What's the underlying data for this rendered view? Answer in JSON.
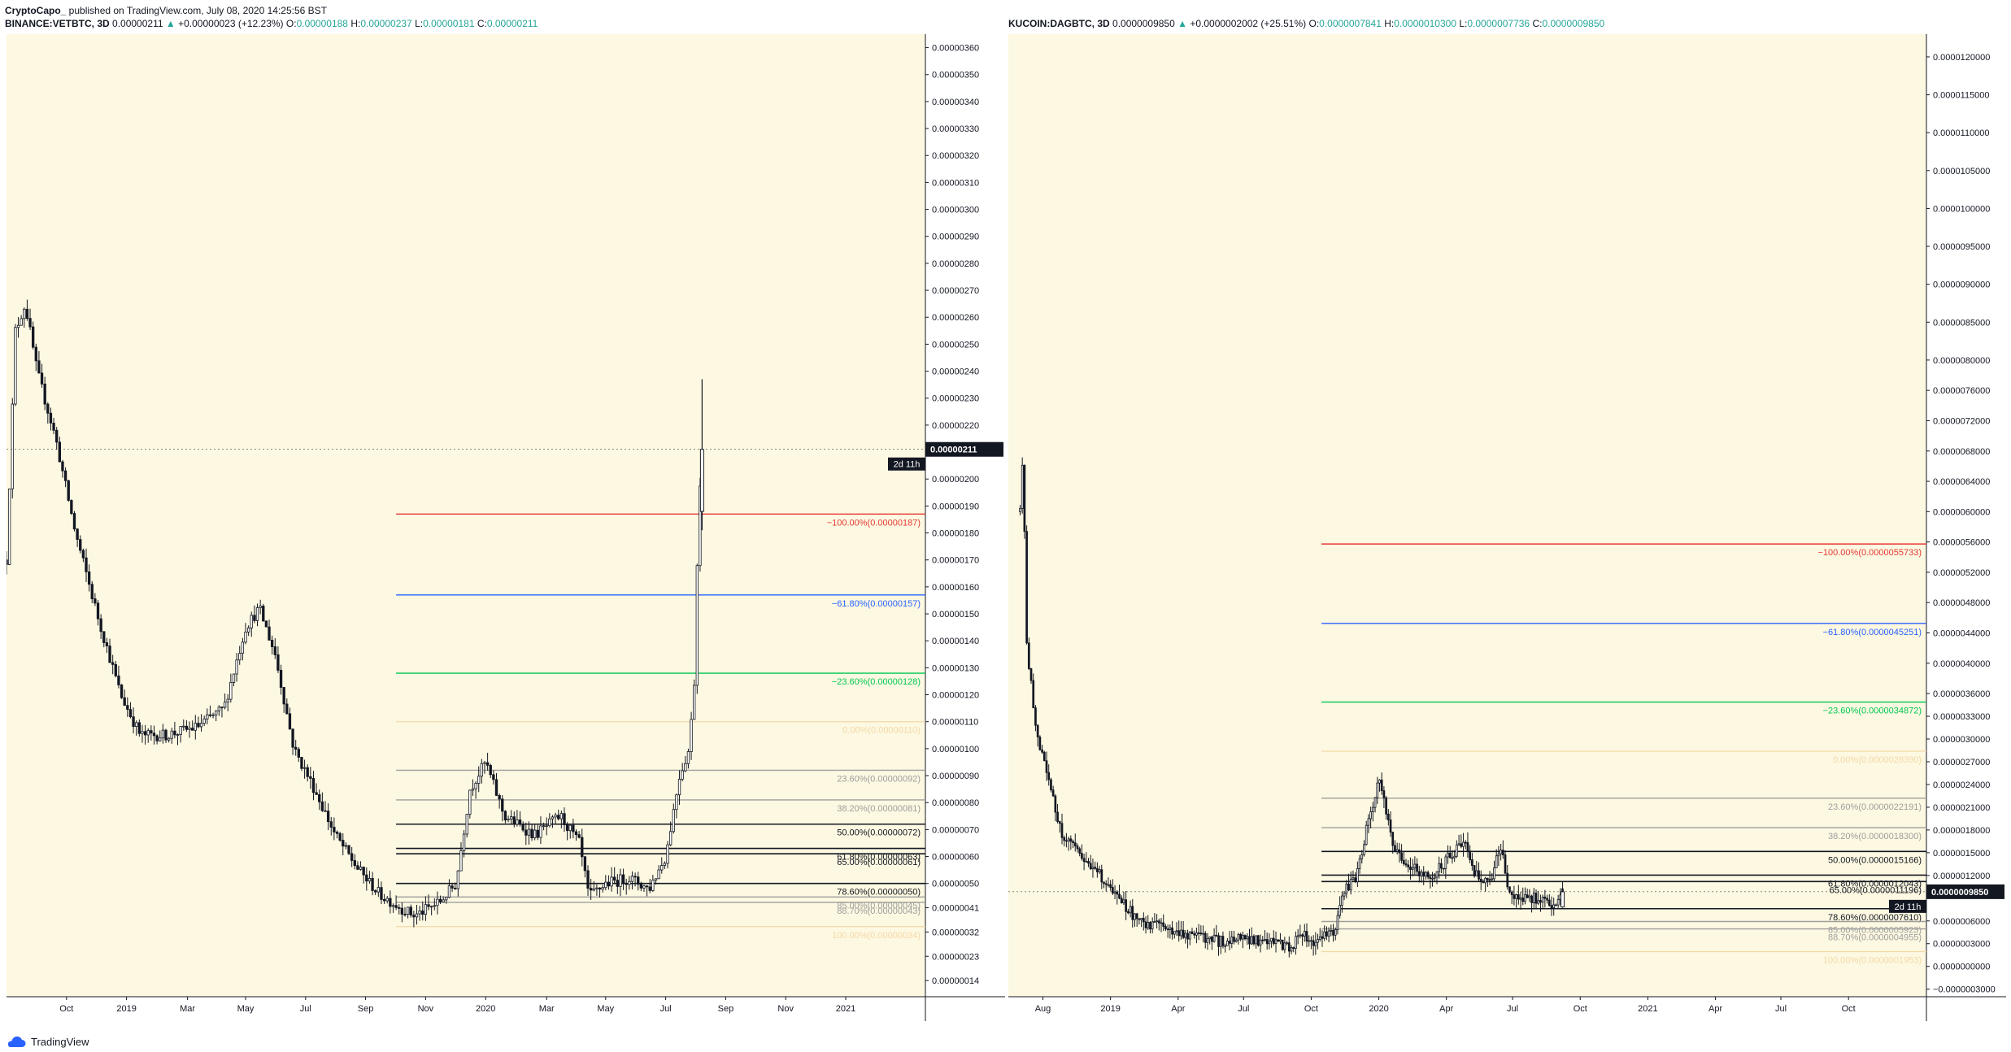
{
  "header": {
    "author": "CryptoCapo_",
    "published": " published on TradingView.com, July 08, 2020 14:25:56 BST"
  },
  "footer": {
    "brand": "TradingView"
  },
  "colors": {
    "background": "#fdf8e1",
    "candle": "#131722",
    "fib_red": "#e53935",
    "fib_blue": "#2962ff",
    "fib_green": "#00c853",
    "fib_gray": "#9e9e9e",
    "fib_black": "#131722",
    "fib_faint": "#f3d9a8",
    "up": "#26a69a"
  },
  "chart_data": [
    {
      "type": "candlestick",
      "symbol_line": {
        "symbol": "BINANCE:VETBTC, 3D",
        "last": "0.00000211",
        "arrow": "▲",
        "change": "+0.00000023 (+12.23%)",
        "o_label": "O:",
        "o": "0.00000188",
        "h_label": "H:",
        "h": "0.00000237",
        "l_label": "L:",
        "l": "0.00000181",
        "c_label": "C:",
        "c": "0.00000211"
      },
      "ylim": [
        8e-08,
        3.65e-06
      ],
      "yticks": [
        "0.00000360",
        "0.00000350",
        "0.00000340",
        "0.00000330",
        "0.00000320",
        "0.00000310",
        "0.00000300",
        "0.00000290",
        "0.00000280",
        "0.00000270",
        "0.00000260",
        "0.00000250",
        "0.00000240",
        "0.00000230",
        "0.00000220",
        "0.00000200",
        "0.00000190",
        "0.00000180",
        "0.00000170",
        "0.00000160",
        "0.00000150",
        "0.00000140",
        "0.00000130",
        "0.00000120",
        "0.00000110",
        "0.00000100",
        "0.00000090",
        "0.00000080",
        "0.00000070",
        "0.00000060",
        "0.00000050",
        "0.00000041",
        "0.00000032",
        "0.00000023",
        "0.00000014"
      ],
      "x_labels": [
        "Oct",
        "2019",
        "Mar",
        "May",
        "Jul",
        "Sep",
        "Nov",
        "2020",
        "Mar",
        "May",
        "Jul",
        "Sep",
        "Nov",
        "2021"
      ],
      "x_axis_start": "2018-08-01",
      "x_axis_end": "2021-02-20",
      "price_badge": "0.00000211",
      "countdown_badge": "2d 11h",
      "fib_start": "2019-09-01",
      "fib_levels": [
        {
          "label": "−100.00%(0.00000187)",
          "value": 1.87e-06,
          "color": "red"
        },
        {
          "label": "−61.80%(0.00000157)",
          "value": 1.57e-06,
          "color": "blue"
        },
        {
          "label": "−23.60%(0.00000128)",
          "value": 1.28e-06,
          "color": "green"
        },
        {
          "label": "0.00%(0.00000110)",
          "value": 1.1e-06,
          "color": "faint"
        },
        {
          "label": "23.60%(0.00000092)",
          "value": 9.2e-07,
          "color": "gray"
        },
        {
          "label": "38.20%(0.00000081)",
          "value": 8.1e-07,
          "color": "gray"
        },
        {
          "label": "50.00%(0.00000072)",
          "value": 7.2e-07,
          "color": "black"
        },
        {
          "label": "61.80%(0.00000063)",
          "value": 6.3e-07,
          "color": "black"
        },
        {
          "label": "65.00%(0.00000061)",
          "value": 6.1e-07,
          "color": "black"
        },
        {
          "label": "78.60%(0.00000050)",
          "value": 5e-07,
          "color": "black"
        },
        {
          "label": "85.00%(0.00000045)",
          "value": 4.5e-07,
          "color": "gray"
        },
        {
          "label": "88.70%(0.00000043)",
          "value": 4.3e-07,
          "color": "gray"
        },
        {
          "label": "100.00%(0.00000034)",
          "value": 3.4e-07,
          "color": "faint"
        }
      ],
      "price_path": [
        [
          "2018-08-01",
          1.7e-06
        ],
        [
          "2018-08-10",
          2.55e-06
        ],
        [
          "2018-08-20",
          2.65e-06
        ],
        [
          "2018-09-01",
          2.4e-06
        ],
        [
          "2018-09-20",
          2.15e-06
        ],
        [
          "2018-10-10",
          1.8e-06
        ],
        [
          "2018-11-01",
          1.5e-06
        ],
        [
          "2018-11-25",
          1.2e-06
        ],
        [
          "2018-12-15",
          1.05e-06
        ],
        [
          "2019-01-10",
          1.05e-06
        ],
        [
          "2019-02-10",
          1.08e-06
        ],
        [
          "2019-03-10",
          1.15e-06
        ],
        [
          "2019-04-01",
          1.45e-06
        ],
        [
          "2019-04-15",
          1.52e-06
        ],
        [
          "2019-05-01",
          1.35e-06
        ],
        [
          "2019-05-20",
          1e-06
        ],
        [
          "2019-06-10",
          8.5e-07
        ],
        [
          "2019-07-01",
          6.8e-07
        ],
        [
          "2019-07-25",
          5.5e-07
        ],
        [
          "2019-08-15",
          4.6e-07
        ],
        [
          "2019-09-10",
          4e-07
        ],
        [
          "2019-09-20",
          3.8e-07
        ],
        [
          "2019-10-15",
          4.3e-07
        ],
        [
          "2019-11-01",
          5e-07
        ],
        [
          "2019-11-15",
          8.5e-07
        ],
        [
          "2019-12-01",
          9.5e-07
        ],
        [
          "2019-12-20",
          7.5e-07
        ],
        [
          "2020-01-20",
          6.8e-07
        ],
        [
          "2020-02-15",
          7.5e-07
        ],
        [
          "2020-03-05",
          6.5e-07
        ],
        [
          "2020-03-15",
          4.5e-07
        ],
        [
          "2020-04-01",
          5e-07
        ],
        [
          "2020-04-25",
          5.2e-07
        ],
        [
          "2020-05-15",
          4.8e-07
        ],
        [
          "2020-06-01",
          6e-07
        ],
        [
          "2020-06-15",
          9e-07
        ],
        [
          "2020-06-25",
          1e-06
        ],
        [
          "2020-07-01",
          1.3e-06
        ],
        [
          "2020-07-04",
          1.88e-06
        ],
        [
          "2020-07-08",
          2.11e-06
        ]
      ]
    },
    {
      "type": "candlestick",
      "symbol_line": {
        "symbol": "KUCOIN:DAGBTC, 3D",
        "last": "0.0000009850",
        "arrow": "▲",
        "change": "+0.0000002002 (+25.51%)",
        "o_label": "O:",
        "o": "0.0000007841",
        "h_label": "H:",
        "h": "0.0000010300",
        "l_label": "L:",
        "l": "0.0000007736",
        "c_label": "C:",
        "c": "0.0000009850"
      },
      "ylim": [
        -4e-07,
        1.23e-05
      ],
      "yticks": [
        "0.0000120000",
        "0.0000115000",
        "0.0000110000",
        "0.0000105000",
        "0.0000100000",
        "0.0000095000",
        "0.0000090000",
        "0.0000085000",
        "0.0000080000",
        "0.0000076000",
        "0.0000072000",
        "0.0000068000",
        "0.0000064000",
        "0.0000060000",
        "0.0000056000",
        "0.0000052000",
        "0.0000048000",
        "0.0000044000",
        "0.0000040000",
        "0.0000036000",
        "0.0000033000",
        "0.0000030000",
        "0.0000027000",
        "0.0000024000",
        "0.0000021000",
        "0.0000018000",
        "0.0000015000",
        "0.0000012000",
        "0.0000006000",
        "0.0000003000",
        "0.0000000000",
        "−0.0000003000"
      ],
      "x_labels": [
        "Aug",
        "2019",
        "Apr",
        "Jul",
        "Oct",
        "2020",
        "Apr",
        "Jul",
        "Oct",
        "2021",
        "Apr",
        "Jul",
        "Oct"
      ],
      "x_axis_start": "2018-06-15",
      "x_axis_end": "2021-11-15",
      "price_badge": "0.0000009850",
      "countdown_badge": "2d 11h",
      "fib_start": "2019-08-15",
      "fib_levels": [
        {
          "label": "−100.00%(0.0000055733)",
          "value": 5.5733e-06,
          "color": "red"
        },
        {
          "label": "−61.80%(0.0000045251)",
          "value": 4.5251e-06,
          "color": "blue"
        },
        {
          "label": "−23.60%(0.0000034872)",
          "value": 3.4872e-06,
          "color": "green"
        },
        {
          "label": "0.00%(0.0000028390)",
          "value": 2.839e-06,
          "color": "faint"
        },
        {
          "label": "23.60%(0.0000022191)",
          "value": 2.2191e-06,
          "color": "gray"
        },
        {
          "label": "38.20%(0.0000018300)",
          "value": 1.83e-06,
          "color": "gray"
        },
        {
          "label": "50.00%(0.0000015166)",
          "value": 1.5166e-06,
          "color": "black"
        },
        {
          "label": "61.80%(0.0000012043)",
          "value": 1.2043e-06,
          "color": "black"
        },
        {
          "label": "65.00%(0.0000011196)",
          "value": 1.1196e-06,
          "color": "black"
        },
        {
          "label": "78.60%(0.0000007610)",
          "value": 7.61e-07,
          "color": "black"
        },
        {
          "label": "85.00%(0.0000005923)",
          "value": 5.923e-07,
          "color": "gray"
        },
        {
          "label": "88.70%(0.0000004955)",
          "value": 4.955e-07,
          "color": "gray"
        },
        {
          "label": "100.00%(0.0000001953)",
          "value": 1.953e-07,
          "color": "faint"
        }
      ],
      "price_path": [
        [
          "2018-07-01",
          6e-06
        ],
        [
          "2018-07-05",
          6.8e-06
        ],
        [
          "2018-07-10",
          4.2e-06
        ],
        [
          "2018-07-25",
          3e-06
        ],
        [
          "2018-08-10",
          2.4e-06
        ],
        [
          "2018-08-25",
          1.8e-06
        ],
        [
          "2018-09-15",
          1.5e-06
        ],
        [
          "2018-10-10",
          1.3e-06
        ],
        [
          "2018-11-10",
          9e-07
        ],
        [
          "2018-12-10",
          6e-07
        ],
        [
          "2019-01-15",
          5e-07
        ],
        [
          "2019-02-20",
          4.2e-07
        ],
        [
          "2019-04-01",
          3.2e-07
        ],
        [
          "2019-05-01",
          3.8e-07
        ],
        [
          "2019-06-01",
          3.2e-07
        ],
        [
          "2019-07-01",
          2.6e-07
        ],
        [
          "2019-07-20",
          4e-07
        ],
        [
          "2019-08-10",
          3.2e-07
        ],
        [
          "2019-09-01",
          4.8e-07
        ],
        [
          "2019-09-15",
          1e-06
        ],
        [
          "2019-10-01",
          1.2e-06
        ],
        [
          "2019-10-20",
          2e-06
        ],
        [
          "2019-11-01",
          2.5e-06
        ],
        [
          "2019-11-20",
          1.6e-06
        ],
        [
          "2019-12-15",
          1.3e-06
        ],
        [
          "2020-01-15",
          1.2e-06
        ],
        [
          "2020-02-10",
          1.5e-06
        ],
        [
          "2020-02-25",
          1.7e-06
        ],
        [
          "2020-03-12",
          1.2e-06
        ],
        [
          "2020-04-01",
          1.1e-06
        ],
        [
          "2020-04-15",
          1.6e-06
        ],
        [
          "2020-04-25",
          1e-06
        ],
        [
          "2020-05-20",
          9e-07
        ],
        [
          "2020-06-15",
          9e-07
        ],
        [
          "2020-07-01",
          7.8e-07
        ],
        [
          "2020-07-08",
          9.85e-07
        ]
      ]
    }
  ]
}
